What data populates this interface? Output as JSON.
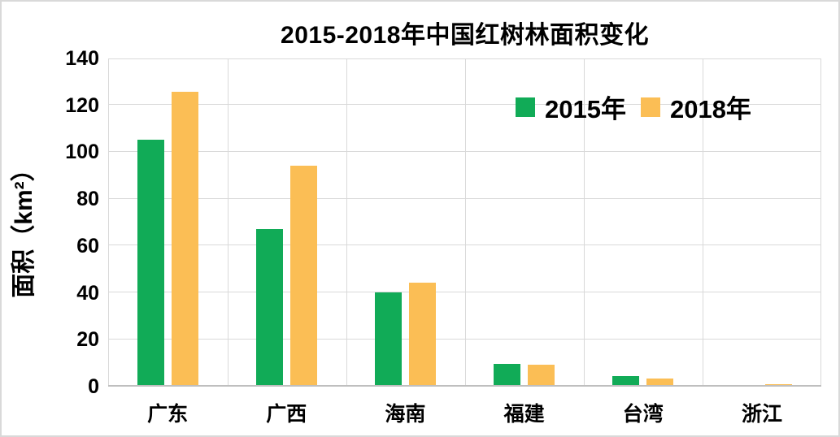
{
  "chart_data": {
    "type": "bar",
    "title": "2015-2018年中国红树林面积变化",
    "ylabel": "面积（km²）",
    "xlabel": "",
    "categories": [
      "广东",
      "广西",
      "海南",
      "福建",
      "台湾",
      "浙江"
    ],
    "series": [
      {
        "name": "2015年",
        "color": "#11ab57",
        "values": [
          105,
          67,
          40,
          9.5,
          4,
          0.2
        ]
      },
      {
        "name": "2018年",
        "color": "#fbbe55",
        "values": [
          125.5,
          94,
          44,
          9,
          3,
          0.8
        ]
      }
    ],
    "ylim": [
      0,
      140
    ],
    "yticks": [
      0,
      20,
      40,
      60,
      80,
      100,
      120,
      140
    ],
    "grid": true,
    "legend_position": "top-right"
  },
  "colors": {
    "grid": "#d9d9d9",
    "axis": "#bfbfbf",
    "text": "#000000",
    "background": "#ffffff",
    "frame_border": "#d9d9d9"
  }
}
